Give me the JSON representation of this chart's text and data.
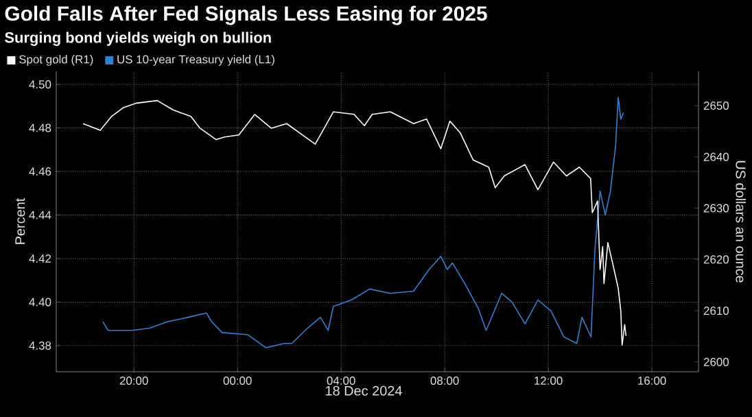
{
  "chart_data": {
    "type": "line",
    "title": "Gold Falls After Fed Signals Less Easing for 2025",
    "subtitle": "Surging bond yields weigh on bullion",
    "xlabel": "18 Dec 2024",
    "ylabel": "Percent",
    "y2label": "US dollars an ounce",
    "xlim": [
      "2024-12-17T17:00",
      "2024-12-18T17:48"
    ],
    "xticks": [
      {
        "value": "2024-12-17T20:00",
        "label": "20:00"
      },
      {
        "value": "2024-12-18T00:00",
        "label": "00:00"
      },
      {
        "value": "2024-12-18T04:00",
        "label": "04:00"
      },
      {
        "value": "2024-12-18T08:00",
        "label": "08:00"
      },
      {
        "value": "2024-12-18T12:00",
        "label": "12:00"
      },
      {
        "value": "2024-12-18T16:00",
        "label": "16:00"
      }
    ],
    "ylim": [
      4.368,
      4.506
    ],
    "yticks": [
      {
        "value": 4.38,
        "label": "4.38"
      },
      {
        "value": 4.4,
        "label": "4.40"
      },
      {
        "value": 4.42,
        "label": "4.42"
      },
      {
        "value": 4.44,
        "label": "4.44"
      },
      {
        "value": 4.46,
        "label": "4.46"
      },
      {
        "value": 4.48,
        "label": "4.48"
      },
      {
        "value": 4.5,
        "label": "4.50"
      }
    ],
    "y2lim": [
      2598.1,
      2656.7
    ],
    "y2ticks": [
      2600,
      2610,
      2620,
      2630,
      2640,
      2650
    ],
    "grid": true,
    "legend": "top left",
    "series": [
      {
        "name": "Spot gold (R1)",
        "color": "#ffffff",
        "axis": "y2",
        "x": [
          "2024-12-17T18:02",
          "2024-12-17T18:42",
          "2024-12-17T19:08",
          "2024-12-17T19:35",
          "2024-12-17T20:06",
          "2024-12-17T20:54",
          "2024-12-17T21:30",
          "2024-12-17T22:12",
          "2024-12-17T22:33",
          "2024-12-17T23:10",
          "2024-12-17T23:30",
          "2024-12-18T00:03",
          "2024-12-18T00:40",
          "2024-12-18T01:18",
          "2024-12-18T01:54",
          "2024-12-18T02:30",
          "2024-12-18T03:00",
          "2024-12-18T03:18",
          "2024-12-18T03:42",
          "2024-12-18T04:30",
          "2024-12-18T04:54",
          "2024-12-18T05:12",
          "2024-12-18T05:54",
          "2024-12-18T06:48",
          "2024-12-18T07:18",
          "2024-12-18T07:51",
          "2024-12-18T08:12",
          "2024-12-18T08:36",
          "2024-12-18T09:06",
          "2024-12-18T09:42",
          "2024-12-18T09:57",
          "2024-12-18T10:18",
          "2024-12-18T11:06",
          "2024-12-18T11:36",
          "2024-12-18T12:12",
          "2024-12-18T12:42",
          "2024-12-18T13:12",
          "2024-12-18T13:38",
          "2024-12-18T13:42",
          "2024-12-18T13:54",
          "2024-12-18T14:00",
          "2024-12-18T14:06",
          "2024-12-18T14:09",
          "2024-12-18T14:18",
          "2024-12-18T14:30",
          "2024-12-18T14:42",
          "2024-12-18T14:48",
          "2024-12-18T14:51",
          "2024-12-18T14:57",
          "2024-12-18T15:00"
        ],
        "values": [
          2646.5,
          2645.2,
          2647.9,
          2649.6,
          2650.5,
          2651.0,
          2649.2,
          2647.9,
          2645.6,
          2643.4,
          2643.9,
          2644.3,
          2648.3,
          2645.6,
          2646.5,
          2644.3,
          2642.5,
          2645.2,
          2648.8,
          2648.3,
          2646.1,
          2648.3,
          2648.8,
          2646.5,
          2647.4,
          2641.6,
          2647.0,
          2644.7,
          2639.4,
          2638.0,
          2634.0,
          2636.3,
          2638.5,
          2633.6,
          2639.0,
          2636.3,
          2638.0,
          2635.8,
          2629.1,
          2631.4,
          2618.0,
          2622.5,
          2615.3,
          2623.3,
          2618.9,
          2614.4,
          2610.0,
          2603.3,
          2607.3,
          2605.1
        ]
      },
      {
        "name": "US 10-year Treasury yield (L1)",
        "color": "#2f7fd6",
        "axis": "y",
        "x": [
          "2024-12-17T18:48",
          "2024-12-17T19:00",
          "2024-12-17T19:54",
          "2024-12-17T20:36",
          "2024-12-17T21:18",
          "2024-12-17T22:06",
          "2024-12-17T22:48",
          "2024-12-17T23:00",
          "2024-12-17T23:24",
          "2024-12-18T00:24",
          "2024-12-18T01:06",
          "2024-12-18T01:48",
          "2024-12-18T02:06",
          "2024-12-18T02:42",
          "2024-12-18T03:12",
          "2024-12-18T03:30",
          "2024-12-18T03:42",
          "2024-12-18T04:24",
          "2024-12-18T05:06",
          "2024-12-18T05:54",
          "2024-12-18T06:48",
          "2024-12-18T07:24",
          "2024-12-18T07:51",
          "2024-12-18T08:06",
          "2024-12-18T08:18",
          "2024-12-18T08:48",
          "2024-12-18T09:18",
          "2024-12-18T09:36",
          "2024-12-18T10:12",
          "2024-12-18T10:36",
          "2024-12-18T11:06",
          "2024-12-18T11:36",
          "2024-12-18T12:06",
          "2024-12-18T12:36",
          "2024-12-18T13:06",
          "2024-12-18T13:18",
          "2024-12-18T13:39",
          "2024-12-18T13:48",
          "2024-12-18T14:00",
          "2024-12-18T14:12",
          "2024-12-18T14:24",
          "2024-12-18T14:36",
          "2024-12-18T14:42",
          "2024-12-18T14:48",
          "2024-12-18T14:54"
        ],
        "values": [
          4.391,
          4.387,
          4.387,
          4.388,
          4.391,
          4.393,
          4.395,
          4.391,
          4.386,
          4.385,
          4.379,
          4.381,
          4.381,
          4.388,
          4.393,
          4.387,
          4.398,
          4.401,
          4.406,
          4.404,
          4.405,
          4.415,
          4.421,
          4.415,
          4.418,
          4.408,
          4.397,
          4.387,
          4.404,
          4.4,
          4.39,
          4.401,
          4.396,
          4.384,
          4.381,
          4.393,
          4.384,
          4.424,
          4.451,
          4.44,
          4.451,
          4.472,
          4.494,
          4.484,
          4.487
        ]
      }
    ]
  }
}
